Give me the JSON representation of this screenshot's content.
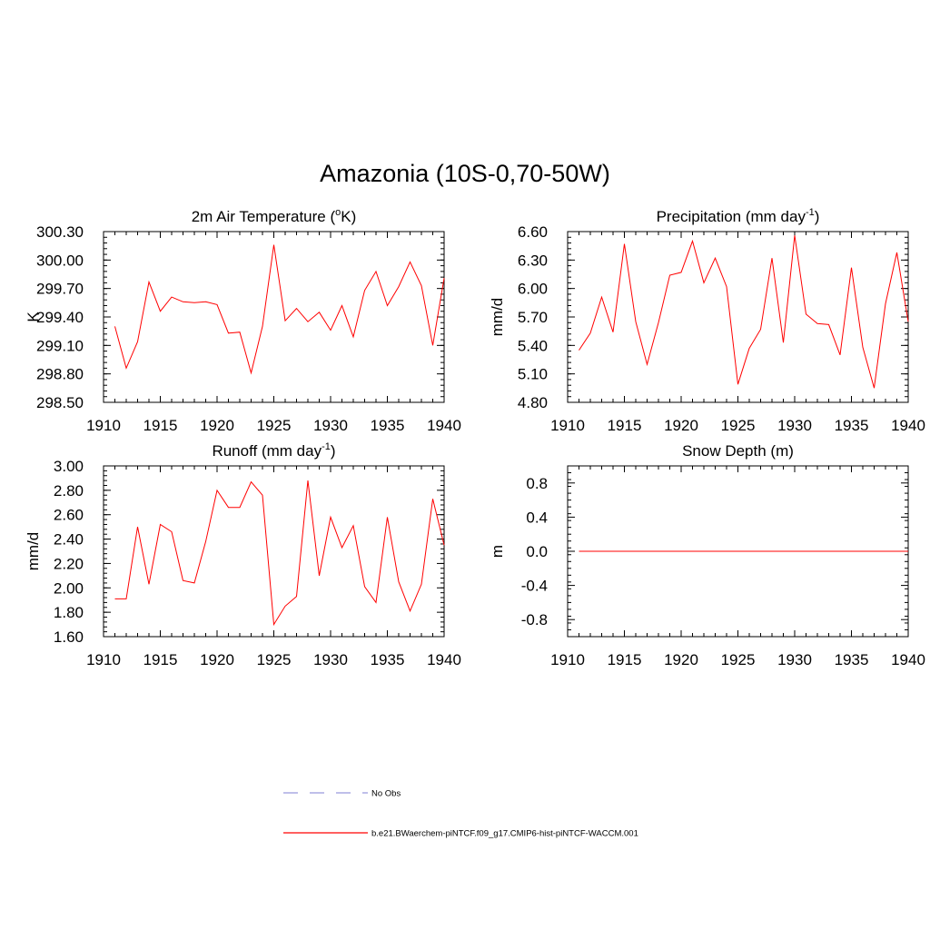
{
  "figure": {
    "title": "Amazonia (10S-0,70-50W)"
  },
  "legend": {
    "entries": [
      {
        "label": "No Obs",
        "color": "#9999dd",
        "dash": true
      },
      {
        "label": "b.e21.BWaerchem-piNTCF.f09_g17.CMIP6-hist-piNTCF-WACCM.001",
        "color": "#ff0000",
        "dash": false
      }
    ]
  },
  "chart_data": [
    {
      "type": "line",
      "title": "2m Air Temperature (",
      "title_sup": "o",
      "title_after": "K)",
      "ylabel": "K",
      "xlim": [
        1910,
        1940
      ],
      "ylim": [
        298.5,
        300.3
      ],
      "xticks": [
        1910,
        1915,
        1920,
        1925,
        1930,
        1935,
        1940
      ],
      "yticks": [
        "298.50",
        "298.80",
        "299.10",
        "299.40",
        "299.70",
        "300.00",
        "300.30"
      ],
      "show_xtick_labels": true,
      "series": [
        {
          "color": "#ff0000",
          "x": [
            1911,
            1912,
            1913,
            1914,
            1915,
            1916,
            1917,
            1918,
            1919,
            1920,
            1921,
            1922,
            1923,
            1924,
            1925,
            1926,
            1927,
            1928,
            1929,
            1930,
            1931,
            1932,
            1933,
            1934,
            1935,
            1936,
            1937,
            1938,
            1939,
            1940
          ],
          "values": [
            299.3,
            298.86,
            299.14,
            299.77,
            299.46,
            299.61,
            299.56,
            299.55,
            299.56,
            299.53,
            299.23,
            299.24,
            298.81,
            299.3,
            300.16,
            299.36,
            299.49,
            299.35,
            299.45,
            299.26,
            299.52,
            299.19,
            299.68,
            299.88,
            299.52,
            299.72,
            299.98,
            299.73,
            299.1,
            299.81
          ]
        }
      ]
    },
    {
      "type": "line",
      "title": "Precipitation (mm day",
      "title_sup": "-1",
      "title_after": ")",
      "ylabel": "mm/d",
      "xlim": [
        1910,
        1940
      ],
      "ylim": [
        4.8,
        6.6
      ],
      "xticks": [
        1910,
        1915,
        1920,
        1925,
        1930,
        1935,
        1940
      ],
      "yticks": [
        "4.80",
        "5.10",
        "5.40",
        "5.70",
        "6.00",
        "6.30",
        "6.60"
      ],
      "show_xtick_labels": true,
      "series": [
        {
          "color": "#ff0000",
          "x": [
            1911,
            1912,
            1913,
            1914,
            1915,
            1916,
            1917,
            1918,
            1919,
            1920,
            1921,
            1922,
            1923,
            1924,
            1925,
            1926,
            1927,
            1928,
            1929,
            1930,
            1931,
            1932,
            1933,
            1934,
            1935,
            1936,
            1937,
            1938,
            1939,
            1940
          ],
          "values": [
            5.35,
            5.53,
            5.91,
            5.54,
            6.47,
            5.65,
            5.2,
            5.64,
            6.14,
            6.17,
            6.5,
            6.06,
            6.32,
            6.02,
            4.99,
            5.37,
            5.57,
            6.32,
            5.43,
            6.56,
            5.73,
            5.63,
            5.62,
            5.3,
            6.22,
            5.38,
            4.95,
            5.84,
            6.38,
            5.65
          ]
        }
      ]
    },
    {
      "type": "line",
      "title": "Runoff (mm day",
      "title_sup": "-1",
      "title_after": ")",
      "ylabel": "mm/d",
      "xlim": [
        1910,
        1940
      ],
      "ylim": [
        1.6,
        3.0
      ],
      "xticks": [
        1910,
        1915,
        1920,
        1925,
        1930,
        1935,
        1940
      ],
      "yticks": [
        "1.60",
        "1.80",
        "2.00",
        "2.20",
        "2.40",
        "2.60",
        "2.80",
        "3.00"
      ],
      "show_xtick_labels": true,
      "series": [
        {
          "color": "#ff0000",
          "x": [
            1911,
            1912,
            1913,
            1914,
            1915,
            1916,
            1917,
            1918,
            1919,
            1920,
            1921,
            1922,
            1923,
            1924,
            1925,
            1926,
            1927,
            1928,
            1929,
            1930,
            1931,
            1932,
            1933,
            1934,
            1935,
            1936,
            1937,
            1938,
            1939,
            1940
          ],
          "values": [
            1.91,
            1.91,
            2.5,
            2.03,
            2.52,
            2.46,
            2.06,
            2.04,
            2.38,
            2.8,
            2.66,
            2.66,
            2.87,
            2.76,
            1.7,
            1.85,
            1.93,
            2.88,
            2.1,
            2.58,
            2.33,
            2.51,
            2.01,
            1.88,
            2.58,
            2.05,
            1.81,
            2.03,
            2.73,
            2.35
          ]
        }
      ]
    },
    {
      "type": "line",
      "title": "Snow Depth (m)",
      "title_sup": "",
      "title_after": "",
      "ylabel": "m",
      "xlim": [
        1910,
        1940
      ],
      "ylim": [
        -1.0,
        1.0
      ],
      "xticks": [
        1910,
        1915,
        1920,
        1925,
        1930,
        1935,
        1940
      ],
      "yticks": [
        "-0.8",
        "-0.4",
        "0.0",
        "0.4",
        "0.8"
      ],
      "ytick_values": [
        -0.8,
        -0.4,
        0.0,
        0.4,
        0.8
      ],
      "show_xtick_labels": true,
      "series": [
        {
          "color": "#ff0000",
          "x": [
            1911,
            1912,
            1913,
            1914,
            1915,
            1916,
            1917,
            1918,
            1919,
            1920,
            1921,
            1922,
            1923,
            1924,
            1925,
            1926,
            1927,
            1928,
            1929,
            1930,
            1931,
            1932,
            1933,
            1934,
            1935,
            1936,
            1937,
            1938,
            1939,
            1940
          ],
          "values": [
            0,
            0,
            0,
            0,
            0,
            0,
            0,
            0,
            0,
            0,
            0,
            0,
            0,
            0,
            0,
            0,
            0,
            0,
            0,
            0,
            0,
            0,
            0,
            0,
            0,
            0,
            0,
            0,
            0,
            0
          ]
        }
      ]
    }
  ]
}
